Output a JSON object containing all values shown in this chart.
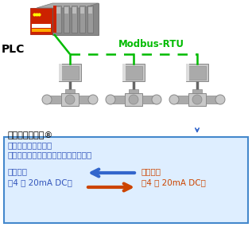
{
  "bg_color": "#ffffff",
  "border_color": "#4488cc",
  "plc_label": "PLC",
  "modbus_label": "Modbus-RTU",
  "step_label": "ステップトップ®",
  "box_text1": "アナログ信号による",
  "box_text2": "開度制御機能も標準装備しています。",
  "op_label": "操作信号",
  "op_range": "（4 ～ 20mA DC）",
  "open_label": "開度信号",
  "open_range": "（4 ～ 20mA DC）",
  "green_color": "#00bb00",
  "blue_color": "#3366cc",
  "red_color": "#cc3300",
  "arrow_blue": "#3366cc",
  "arrow_red": "#cc4400",
  "text_blue": "#3355bb",
  "text_red": "#cc4400",
  "white": "#ffffff",
  "light_blue_bg": "#deeeff",
  "valve_gray1": "#c8c8c8",
  "valve_gray2": "#aaaaaa",
  "valve_gray3": "#888888",
  "valve_dark": "#666666"
}
